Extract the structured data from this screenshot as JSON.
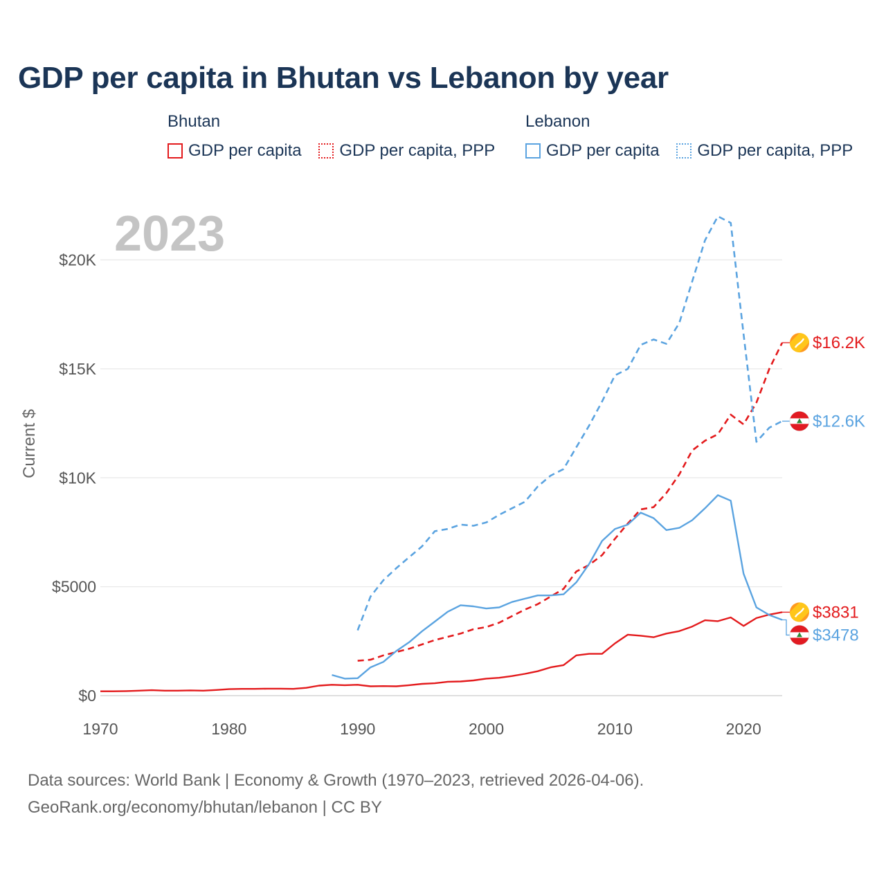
{
  "chart_data": {
    "type": "line",
    "title": "GDP per capita in Bhutan vs Lebanon by year",
    "year_label": "2023",
    "ylabel": "Current $",
    "xlabel": "",
    "xlim": [
      1970,
      2023
    ],
    "ylim": [
      0,
      22000
    ],
    "x_ticks": [
      1970,
      1980,
      1990,
      2000,
      2010,
      2020
    ],
    "y_ticks": [
      {
        "value": 0,
        "label": "$0"
      },
      {
        "value": 5000,
        "label": "$5000"
      },
      {
        "value": 10000,
        "label": "$10K"
      },
      {
        "value": 15000,
        "label": "$15K"
      },
      {
        "value": 20000,
        "label": "$20K"
      }
    ],
    "legend_groups": [
      {
        "name": "Bhutan",
        "entries": [
          "GDP per capita",
          "GDP per capita, PPP"
        ]
      },
      {
        "name": "Lebanon",
        "entries": [
          "GDP per capita",
          "GDP per capita, PPP"
        ]
      }
    ],
    "series": [
      {
        "name": "Bhutan GDP per capita",
        "country": "Bhutan",
        "color": "#e31a1c",
        "dash": "solid",
        "x": [
          1970,
          1971,
          1972,
          1973,
          1974,
          1975,
          1976,
          1977,
          1978,
          1979,
          1980,
          1981,
          1982,
          1983,
          1984,
          1985,
          1986,
          1987,
          1988,
          1989,
          1990,
          1991,
          1992,
          1993,
          1994,
          1995,
          1996,
          1997,
          1998,
          1999,
          2000,
          2001,
          2002,
          2003,
          2004,
          2005,
          2006,
          2007,
          2008,
          2009,
          2010,
          2011,
          2012,
          2013,
          2014,
          2015,
          2016,
          2017,
          2018,
          2019,
          2020,
          2021,
          2022,
          2023
        ],
        "y": [
          200,
          200,
          210,
          230,
          250,
          230,
          230,
          240,
          230,
          260,
          300,
          310,
          310,
          320,
          320,
          310,
          360,
          460,
          500,
          480,
          500,
          430,
          440,
          430,
          480,
          540,
          570,
          640,
          650,
          700,
          780,
          820,
          900,
          1000,
          1120,
          1300,
          1400,
          1850,
          1920,
          1920,
          2400,
          2800,
          2750,
          2680,
          2850,
          2960,
          3170,
          3460,
          3420,
          3590,
          3200,
          3560,
          3720,
          3831
        ],
        "end_label": "$3831"
      },
      {
        "name": "Bhutan GDP per capita, PPP",
        "country": "Bhutan",
        "color": "#e31a1c",
        "dash": "dashed",
        "x": [
          1990,
          1991,
          1992,
          1993,
          1994,
          1995,
          1996,
          1997,
          1998,
          1999,
          2000,
          2001,
          2002,
          2003,
          2004,
          2005,
          2006,
          2007,
          2008,
          2009,
          2010,
          2011,
          2012,
          2013,
          2014,
          2015,
          2016,
          2017,
          2018,
          2019,
          2020,
          2021,
          2022,
          2023
        ],
        "y": [
          1600,
          1650,
          1850,
          2000,
          2150,
          2350,
          2550,
          2700,
          2850,
          3050,
          3150,
          3350,
          3650,
          3950,
          4200,
          4550,
          4900,
          5700,
          6000,
          6450,
          7200,
          7900,
          8550,
          8650,
          9300,
          10150,
          11250,
          11700,
          12000,
          12900,
          12450,
          13450,
          15000,
          16200
        ],
        "end_label": "$16.2K"
      },
      {
        "name": "Lebanon GDP per capita",
        "country": "Lebanon",
        "color": "#5aa3e0",
        "dash": "solid",
        "x": [
          1988,
          1989,
          1990,
          1991,
          1992,
          1993,
          1994,
          1995,
          1996,
          1997,
          1998,
          1999,
          2000,
          2001,
          2002,
          2003,
          2004,
          2005,
          2006,
          2007,
          2008,
          2009,
          2010,
          2011,
          2012,
          2013,
          2014,
          2015,
          2016,
          2017,
          2018,
          2019,
          2020,
          2021,
          2022,
          2023
        ],
        "y": [
          950,
          780,
          800,
          1300,
          1550,
          2050,
          2450,
          2950,
          3400,
          3850,
          4150,
          4100,
          4000,
          4050,
          4300,
          4450,
          4600,
          4600,
          4650,
          5200,
          6050,
          7100,
          7650,
          7850,
          8400,
          8150,
          7600,
          7700,
          8050,
          8600,
          9200,
          8950,
          5600,
          4050,
          3700,
          3478
        ],
        "end_label": "$3478"
      },
      {
        "name": "Lebanon GDP per capita, PPP",
        "country": "Lebanon",
        "color": "#5aa3e0",
        "dash": "dashed",
        "x": [
          1990,
          1991,
          1992,
          1993,
          1994,
          1995,
          1996,
          1997,
          1998,
          1999,
          2000,
          2001,
          2002,
          2003,
          2004,
          2005,
          2006,
          2007,
          2008,
          2009,
          2010,
          2011,
          2012,
          2013,
          2014,
          2015,
          2016,
          2017,
          2018,
          2019,
          2020,
          2021,
          2022,
          2023
        ],
        "y": [
          3000,
          4550,
          5300,
          5850,
          6350,
          6850,
          7550,
          7650,
          7850,
          7800,
          7950,
          8300,
          8600,
          8900,
          9600,
          10100,
          10400,
          11400,
          12400,
          13500,
          14700,
          15000,
          16100,
          16350,
          16150,
          17100,
          19000,
          20900,
          22000,
          21700,
          16600,
          11650,
          12300,
          12600
        ],
        "end_label": "$12.6K"
      }
    ]
  },
  "footer": {
    "line1": "Data sources: World Bank | Economy & Growth (1970–2023, retrieved 2026-04-06).",
    "line2": "GeoRank.org/economy/bhutan/lebanon | CC BY"
  },
  "colors": {
    "bhutan": "#e31a1c",
    "lebanon": "#5aa3e0",
    "title": "#1b3556"
  },
  "icons": {
    "bhutan": "bhutan-flag-icon",
    "lebanon": "lebanon-flag-icon"
  }
}
